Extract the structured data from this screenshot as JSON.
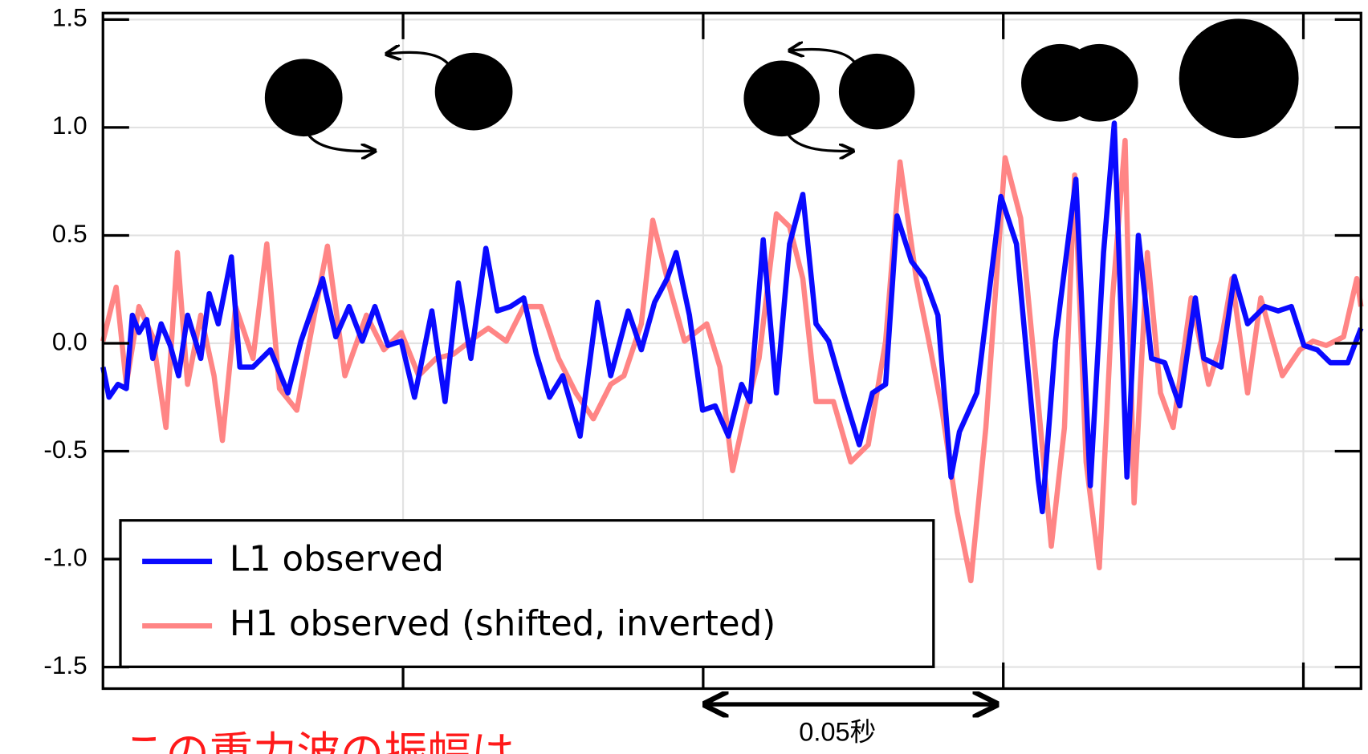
{
  "chart_data": {
    "type": "line",
    "legend": "lower left",
    "grid": true,
    "xlim": [
      0,
      0.2096
    ],
    "xticks": [
      0.05,
      0.1,
      0.15,
      0.2
    ],
    "ylim": [
      -1.6,
      1.53
    ],
    "yticks": [
      1.5,
      {
        "value": 1,
        "label": "1.0"
      },
      0.5,
      {
        "value": 0,
        "label": "0.0"
      },
      -0.5,
      {
        "value": -1,
        "label": "-1.0"
      },
      -1.5
    ],
    "annotations": [
      "0.05秒",
      "この重力波の振幅は"
    ],
    "series": [
      {
        "name": "L1 observed",
        "color": "#0a0aff",
        "x": [
          0,
          0.001,
          0.0025,
          0.0039,
          0.0049,
          0.006,
          0.0073,
          0.0083,
          0.0097,
          0.0112,
          0.0126,
          0.0141,
          0.0163,
          0.0177,
          0.0192,
          0.0214,
          0.0228,
          0.025,
          0.0279,
          0.0308,
          0.033,
          0.0366,
          0.0388,
          0.041,
          0.0432,
          0.0453,
          0.0475,
          0.0497,
          0.0519,
          0.0548,
          0.057,
          0.0592,
          0.0613,
          0.0638,
          0.0657,
          0.0679,
          0.0701,
          0.0722,
          0.0744,
          0.0766,
          0.0795,
          0.0824,
          0.0846,
          0.0875,
          0.0897,
          0.0919,
          0.094,
          0.0955,
          0.0977,
          0.0999,
          0.102,
          0.1042,
          0.1064,
          0.1078,
          0.11,
          0.1122,
          0.1144,
          0.1166,
          0.1188,
          0.1209,
          0.1238,
          0.126,
          0.1282,
          0.1304,
          0.1323,
          0.1347,
          0.1369,
          0.1391,
          0.1413,
          0.1427,
          0.1456,
          0.1496,
          0.1522,
          0.1558,
          0.1565,
          0.1587,
          0.1621,
          0.1645,
          0.1667,
          0.1685,
          0.1706,
          0.1725,
          0.1747,
          0.1769,
          0.1794,
          0.182,
          0.1834,
          0.1863,
          0.1885,
          0.1907,
          0.1936,
          0.1958,
          0.198,
          0.2001,
          0.2023,
          0.2045,
          0.2074,
          0.2096
        ],
        "values": [
          -0.11,
          -0.25,
          -0.19,
          -0.21,
          0.13,
          0.05,
          0.11,
          -0.07,
          0.09,
          -0.01,
          -0.15,
          0.13,
          -0.07,
          0.23,
          0.09,
          0.4,
          -0.11,
          -0.11,
          -0.03,
          -0.23,
          0.01,
          0.3,
          0.03,
          0.17,
          0.01,
          0.17,
          -0.01,
          0.01,
          -0.25,
          0.15,
          -0.27,
          0.28,
          -0.07,
          0.44,
          0.15,
          0.17,
          0.21,
          -0.05,
          -0.25,
          -0.15,
          -0.43,
          0.19,
          -0.15,
          0.15,
          -0.03,
          0.19,
          0.3,
          0.42,
          0.13,
          -0.31,
          -0.29,
          -0.43,
          -0.19,
          -0.27,
          0.48,
          -0.23,
          0.46,
          0.69,
          0.09,
          0.01,
          -0.27,
          -0.47,
          -0.23,
          -0.19,
          0.59,
          0.38,
          0.3,
          0.13,
          -0.62,
          -0.41,
          -0.23,
          0.68,
          0.46,
          -0.63,
          -0.78,
          0.01,
          0.76,
          -0.66,
          0.42,
          1.02,
          -0.62,
          0.5,
          -0.07,
          -0.09,
          -0.29,
          0.21,
          -0.07,
          -0.11,
          0.31,
          0.09,
          0.17,
          0.15,
          0.17,
          -0.01,
          -0.03,
          -0.09,
          -0.09,
          0.07
        ]
      },
      {
        "name": "H1 observed (shifted, inverted)",
        "color": "#ff8585",
        "x": [
          0,
          0.0022,
          0.0039,
          0.006,
          0.0083,
          0.0105,
          0.0124,
          0.0141,
          0.0163,
          0.0185,
          0.0199,
          0.0221,
          0.025,
          0.0273,
          0.0294,
          0.0323,
          0.0344,
          0.0374,
          0.0403,
          0.0439,
          0.0468,
          0.0497,
          0.0526,
          0.0555,
          0.0584,
          0.0621,
          0.0642,
          0.0672,
          0.0701,
          0.073,
          0.0759,
          0.0788,
          0.0817,
          0.0846,
          0.0868,
          0.0897,
          0.0916,
          0.094,
          0.0969,
          0.1006,
          0.1028,
          0.1049,
          0.1071,
          0.1093,
          0.1122,
          0.1144,
          0.1166,
          0.1188,
          0.1217,
          0.1246,
          0.1275,
          0.1304,
          0.1328,
          0.1355,
          0.1376,
          0.1398,
          0.1423,
          0.1446,
          0.1471,
          0.1503,
          0.1529,
          0.1558,
          0.158,
          0.1602,
          0.1619,
          0.1638,
          0.166,
          0.1682,
          0.1703,
          0.1718,
          0.174,
          0.1762,
          0.1783,
          0.1813,
          0.1842,
          0.1863,
          0.1881,
          0.1907,
          0.1929,
          0.1965,
          0.1994,
          0.2016,
          0.2038,
          0.2067,
          0.2089,
          0.2096
        ],
        "values": [
          0.01,
          0.26,
          -0.19,
          0.17,
          0.03,
          -0.39,
          0.42,
          -0.19,
          0.13,
          -0.15,
          -0.45,
          0.17,
          -0.07,
          0.46,
          -0.21,
          -0.31,
          0.01,
          0.45,
          -0.15,
          0.13,
          -0.03,
          0.05,
          -0.15,
          -0.07,
          -0.05,
          0.03,
          0.07,
          0.01,
          0.17,
          0.17,
          -0.07,
          -0.23,
          -0.35,
          -0.19,
          -0.15,
          0.09,
          0.57,
          0.3,
          0.01,
          0.09,
          -0.11,
          -0.59,
          -0.31,
          -0.07,
          0.6,
          0.54,
          0.3,
          -0.27,
          -0.27,
          -0.55,
          -0.47,
          0.01,
          0.84,
          0.3,
          0.01,
          -0.31,
          -0.78,
          -1.1,
          -0.39,
          0.86,
          0.58,
          -0.27,
          -0.94,
          -0.39,
          0.78,
          -0.55,
          -1.04,
          0.21,
          0.94,
          -0.74,
          0.42,
          -0.23,
          -0.39,
          0.21,
          -0.19,
          0.01,
          0.3,
          -0.23,
          0.21,
          -0.15,
          -0.03,
          0.01,
          -0.01,
          0.03,
          0.3,
          0.17
        ]
      }
    ]
  }
}
